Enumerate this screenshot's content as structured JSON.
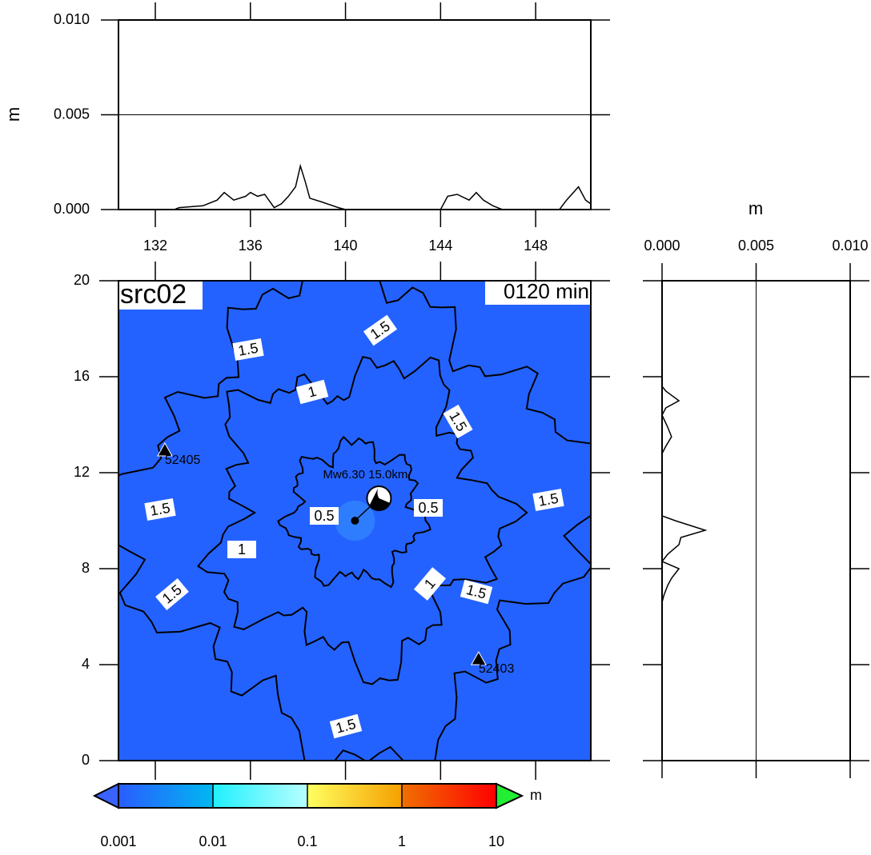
{
  "chart_data": [
    {
      "type": "line",
      "ylabel": "m",
      "x": [
        130.45,
        132.8,
        133,
        134,
        134.6,
        134.9,
        135.3,
        135.8,
        136,
        136.3,
        136.6,
        137,
        137.3,
        137.6,
        137.9,
        138.1,
        138.3,
        138.5,
        139,
        139.7,
        140,
        144,
        144.3,
        144.7,
        145.2,
        145.5,
        145.8,
        146.2,
        146.6,
        149,
        149.3,
        149.8,
        150.1,
        150.32
      ],
      "values": [
        0,
        0,
        0.0001,
        0.0002,
        0.0005,
        0.0009,
        0.0005,
        0.0007,
        0.0009,
        0.0007,
        0.0008,
        0.0001,
        0.0003,
        0.0007,
        0.0012,
        0.0023,
        0.0015,
        0.0006,
        0.0004,
        0.0001,
        0,
        0,
        0.0007,
        0.0008,
        0.0005,
        0.0009,
        0.0005,
        0.0002,
        0,
        0,
        0.0005,
        0.0012,
        0.0005,
        0.0003
      ],
      "color": "#000000",
      "xlim": [
        130.45,
        150.32
      ],
      "xticks": [
        132,
        136,
        140,
        144,
        148
      ],
      "ylim": [
        0,
        0.01
      ],
      "yticks": [
        {
          "value": 0,
          "label": "0.000"
        },
        {
          "value": 0.005,
          "label": "0.005"
        },
        {
          "value": 0.01,
          "label": "0.010"
        }
      ],
      "grid": true
    },
    {
      "type": "map",
      "title": "src02",
      "time_label": "0120 min",
      "xlim": [
        130.45,
        150.32
      ],
      "ylim": [
        0,
        20
      ],
      "yticks": [
        0,
        4,
        8,
        12,
        16,
        20
      ],
      "background": "#2462ff",
      "epicenter": {
        "lon": 140.4,
        "lat": 10.0,
        "label": "Mw6.30 15.0km"
      },
      "stations": [
        {
          "name": "52405",
          "lon": 132.4,
          "lat": 12.9
        },
        {
          "name": "52403",
          "lon": 145.6,
          "lat": 4.2
        }
      ],
      "contour_labels": [
        "1.5",
        "1.5",
        "1",
        "1.5",
        "1.5",
        "0.5",
        "0.5",
        "1.5",
        "1",
        "1",
        "1.5",
        "1.5",
        "1.5"
      ],
      "colorbar": {
        "unit": "m",
        "log": true,
        "lim": [
          0.001,
          10
        ],
        "ticks": [
          0.001,
          0.01,
          0.1,
          1,
          10
        ]
      }
    },
    {
      "type": "profile",
      "xlabel": "m",
      "y": [
        20,
        15.6,
        15.4,
        15,
        14.7,
        14.4,
        13.9,
        13.5,
        13.1,
        12.8,
        10.2,
        10,
        9.6,
        9.3,
        9,
        8.6,
        8.3,
        8,
        7.6,
        7.3,
        6.9,
        6.6,
        0
      ],
      "values": [
        0,
        0,
        0.0002,
        0.0009,
        0.0002,
        0,
        0.0003,
        0.0005,
        0.0002,
        0,
        0,
        0.0007,
        0.0023,
        0.001,
        0.0009,
        0.0003,
        0,
        0.0009,
        0.0005,
        0.0003,
        0.0001,
        0,
        0
      ],
      "color": "#000000",
      "xlim": [
        0,
        0.01
      ],
      "xticks": [
        {
          "value": 0,
          "label": "0.000"
        },
        {
          "value": 0.005,
          "label": "0.005"
        },
        {
          "value": 0.01,
          "label": "0.010"
        }
      ],
      "ylim": [
        0,
        20
      ],
      "grid": true
    }
  ]
}
